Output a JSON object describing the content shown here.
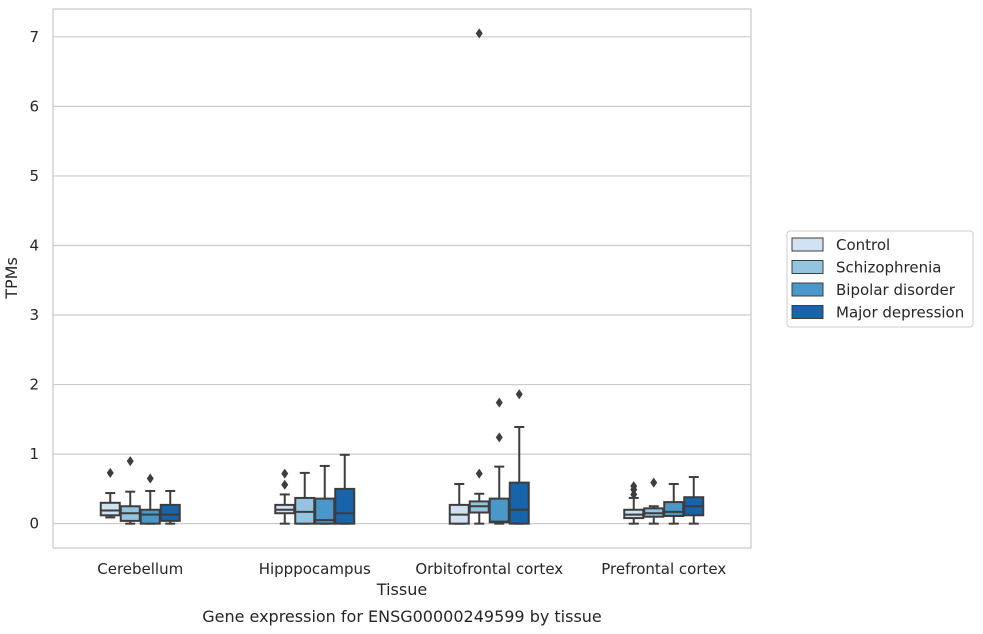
{
  "caption": "Gene expression for ENSG00000249599 by tissue",
  "chart_data": {
    "type": "box",
    "xlabel": "Tissue",
    "ylabel": "TPMs",
    "ylim": [
      -0.35,
      7.4
    ],
    "yticks": [
      0,
      1,
      2,
      3,
      4,
      5,
      6,
      7
    ],
    "grid": "horizontal",
    "legend_placement": "right",
    "categories": [
      "Cerebellum",
      "Hipppocampus",
      "Orbitofrontal cortex",
      "Prefrontal cortex"
    ],
    "series": [
      {
        "name": "Control",
        "color": "#d0e1f2",
        "boxes": [
          {
            "whislo": 0.09,
            "q1": 0.12,
            "med": 0.19,
            "q3": 0.3,
            "whishi": 0.44,
            "fliers": [
              0.73
            ]
          },
          {
            "whislo": 0.0,
            "q1": 0.15,
            "med": 0.2,
            "q3": 0.27,
            "whishi": 0.42,
            "fliers": [
              0.56,
              0.72
            ]
          },
          {
            "whislo": 0.0,
            "q1": 0.0,
            "med": 0.13,
            "q3": 0.27,
            "whishi": 0.57,
            "fliers": []
          },
          {
            "whislo": 0.0,
            "q1": 0.08,
            "med": 0.13,
            "q3": 0.2,
            "whishi": 0.37,
            "fliers": [
              0.42,
              0.49,
              0.54
            ]
          }
        ]
      },
      {
        "name": "Schizophrenia",
        "color": "#94c4df",
        "boxes": [
          {
            "whislo": 0.0,
            "q1": 0.04,
            "med": 0.15,
            "q3": 0.25,
            "whishi": 0.46,
            "fliers": [
              0.9
            ]
          },
          {
            "whislo": 0.0,
            "q1": 0.0,
            "med": 0.17,
            "q3": 0.37,
            "whishi": 0.73,
            "fliers": []
          },
          {
            "whislo": 0.0,
            "q1": 0.16,
            "med": 0.25,
            "q3": 0.32,
            "whishi": 0.43,
            "fliers": [
              0.72,
              7.05
            ]
          },
          {
            "whislo": 0.0,
            "q1": 0.1,
            "med": 0.15,
            "q3": 0.22,
            "whishi": 0.25,
            "fliers": [
              0.59
            ]
          }
        ]
      },
      {
        "name": "Bipolar disorder",
        "color": "#4a98c9",
        "boxes": [
          {
            "whislo": 0.0,
            "q1": 0.0,
            "med": 0.13,
            "q3": 0.2,
            "whishi": 0.47,
            "fliers": [
              0.65
            ]
          },
          {
            "whislo": 0.0,
            "q1": 0.0,
            "med": 0.05,
            "q3": 0.36,
            "whishi": 0.83,
            "fliers": []
          },
          {
            "whislo": 0.0,
            "q1": 0.02,
            "med": 0.03,
            "q3": 0.36,
            "whishi": 0.82,
            "fliers": [
              1.24,
              1.74
            ]
          },
          {
            "whislo": 0.0,
            "q1": 0.11,
            "med": 0.17,
            "q3": 0.31,
            "whishi": 0.57,
            "fliers": []
          }
        ]
      },
      {
        "name": "Major depression",
        "color": "#1764ab",
        "boxes": [
          {
            "whislo": 0.0,
            "q1": 0.04,
            "med": 0.13,
            "q3": 0.27,
            "whishi": 0.47,
            "fliers": []
          },
          {
            "whislo": 0.0,
            "q1": 0.0,
            "med": 0.15,
            "q3": 0.5,
            "whishi": 0.99,
            "fliers": []
          },
          {
            "whislo": 0.0,
            "q1": 0.0,
            "med": 0.2,
            "q3": 0.59,
            "whishi": 1.39,
            "fliers": [
              1.86
            ]
          },
          {
            "whislo": 0.0,
            "q1": 0.12,
            "med": 0.25,
            "q3": 0.38,
            "whishi": 0.67,
            "fliers": []
          }
        ]
      }
    ]
  }
}
